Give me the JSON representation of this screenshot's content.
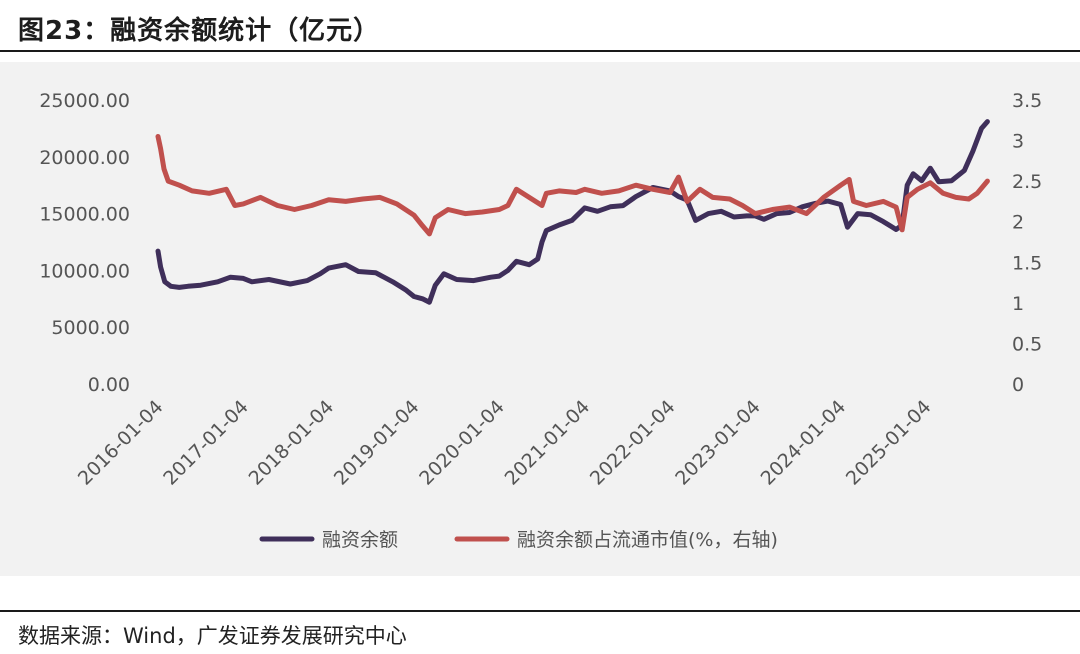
{
  "header": {
    "title": "图23：融资余额统计（亿元）"
  },
  "footer": {
    "source": "数据来源：Wind，广发证券发展研究中心"
  },
  "colors": {
    "series1": "#3f2f5a",
    "series2": "#c0504d",
    "panel": "#f2f2f2",
    "text": "#555555"
  },
  "chart_data": {
    "type": "line",
    "xlabel": "",
    "ylabel": "",
    "x_ticks": [
      "2016-01-04",
      "2017-01-04",
      "2018-01-04",
      "2019-01-04",
      "2020-01-04",
      "2021-01-04",
      "2022-01-04",
      "2023-01-04",
      "2024-01-04",
      "2025-01-04"
    ],
    "x_range": [
      2016.0,
      2025.75
    ],
    "y_left": {
      "ticks": [
        "0.00",
        "5000.00",
        "10000.00",
        "15000.00",
        "20000.00",
        "25000.00"
      ],
      "range": [
        0,
        25000
      ]
    },
    "y_right": {
      "ticks": [
        "0",
        "0.5",
        "1",
        "1.5",
        "2",
        "2.5",
        "3",
        "3.5"
      ],
      "range": [
        0,
        3.5
      ]
    },
    "grid": false,
    "legend_position": "bottom",
    "series": [
      {
        "name": "融资余额",
        "axis": "left",
        "color": "#3f2f5a",
        "points": [
          [
            2016.0,
            11700
          ],
          [
            2016.03,
            10300
          ],
          [
            2016.08,
            9000
          ],
          [
            2016.15,
            8600
          ],
          [
            2016.25,
            8500
          ],
          [
            2016.35,
            8600
          ],
          [
            2016.5,
            8700
          ],
          [
            2016.7,
            9000
          ],
          [
            2016.85,
            9400
          ],
          [
            2017.0,
            9300
          ],
          [
            2017.1,
            9000
          ],
          [
            2017.3,
            9200
          ],
          [
            2017.55,
            8800
          ],
          [
            2017.75,
            9100
          ],
          [
            2017.9,
            9700
          ],
          [
            2018.0,
            10200
          ],
          [
            2018.2,
            10500
          ],
          [
            2018.35,
            9900
          ],
          [
            2018.55,
            9800
          ],
          [
            2018.75,
            9000
          ],
          [
            2018.9,
            8300
          ],
          [
            2019.0,
            7700
          ],
          [
            2019.1,
            7500
          ],
          [
            2019.18,
            7200
          ],
          [
            2019.25,
            8700
          ],
          [
            2019.35,
            9700
          ],
          [
            2019.5,
            9200
          ],
          [
            2019.7,
            9100
          ],
          [
            2019.9,
            9400
          ],
          [
            2020.0,
            9500
          ],
          [
            2020.1,
            10000
          ],
          [
            2020.2,
            10800
          ],
          [
            2020.35,
            10500
          ],
          [
            2020.45,
            11000
          ],
          [
            2020.5,
            12500
          ],
          [
            2020.55,
            13500
          ],
          [
            2020.7,
            14000
          ],
          [
            2020.85,
            14400
          ],
          [
            2021.0,
            15500
          ],
          [
            2021.15,
            15200
          ],
          [
            2021.3,
            15600
          ],
          [
            2021.45,
            15700
          ],
          [
            2021.6,
            16500
          ],
          [
            2021.8,
            17300
          ],
          [
            2022.0,
            17000
          ],
          [
            2022.1,
            16500
          ],
          [
            2022.2,
            16200
          ],
          [
            2022.3,
            14400
          ],
          [
            2022.45,
            15000
          ],
          [
            2022.6,
            15200
          ],
          [
            2022.75,
            14700
          ],
          [
            2022.9,
            14800
          ],
          [
            2023.0,
            14800
          ],
          [
            2023.1,
            14500
          ],
          [
            2023.25,
            15000
          ],
          [
            2023.4,
            15100
          ],
          [
            2023.55,
            15600
          ],
          [
            2023.7,
            15900
          ],
          [
            2023.85,
            16100
          ],
          [
            2024.0,
            15800
          ],
          [
            2024.08,
            13800
          ],
          [
            2024.2,
            15000
          ],
          [
            2024.35,
            14900
          ],
          [
            2024.5,
            14300
          ],
          [
            2024.65,
            13600
          ],
          [
            2024.72,
            14000
          ],
          [
            2024.78,
            17500
          ],
          [
            2024.85,
            18500
          ],
          [
            2024.95,
            17900
          ],
          [
            2025.05,
            19000
          ],
          [
            2025.15,
            17800
          ],
          [
            2025.3,
            17900
          ],
          [
            2025.45,
            18800
          ],
          [
            2025.55,
            20500
          ],
          [
            2025.65,
            22500
          ],
          [
            2025.72,
            23100
          ]
        ]
      },
      {
        "name": "融资余额占流通市值(%，右轴)",
        "axis": "right",
        "color": "#c0504d",
        "points": [
          [
            2016.0,
            3.05
          ],
          [
            2016.03,
            2.9
          ],
          [
            2016.07,
            2.65
          ],
          [
            2016.12,
            2.5
          ],
          [
            2016.25,
            2.45
          ],
          [
            2016.4,
            2.38
          ],
          [
            2016.6,
            2.35
          ],
          [
            2016.8,
            2.4
          ],
          [
            2016.9,
            2.2
          ],
          [
            2017.0,
            2.22
          ],
          [
            2017.2,
            2.3
          ],
          [
            2017.4,
            2.2
          ],
          [
            2017.6,
            2.15
          ],
          [
            2017.8,
            2.2
          ],
          [
            2018.0,
            2.27
          ],
          [
            2018.2,
            2.25
          ],
          [
            2018.4,
            2.28
          ],
          [
            2018.6,
            2.3
          ],
          [
            2018.8,
            2.22
          ],
          [
            2019.0,
            2.08
          ],
          [
            2019.1,
            1.95
          ],
          [
            2019.18,
            1.85
          ],
          [
            2019.25,
            2.05
          ],
          [
            2019.4,
            2.15
          ],
          [
            2019.6,
            2.1
          ],
          [
            2019.8,
            2.12
          ],
          [
            2020.0,
            2.15
          ],
          [
            2020.1,
            2.2
          ],
          [
            2020.2,
            2.4
          ],
          [
            2020.35,
            2.3
          ],
          [
            2020.5,
            2.2
          ],
          [
            2020.55,
            2.35
          ],
          [
            2020.7,
            2.38
          ],
          [
            2020.9,
            2.36
          ],
          [
            2021.0,
            2.4
          ],
          [
            2021.2,
            2.35
          ],
          [
            2021.4,
            2.38
          ],
          [
            2021.6,
            2.45
          ],
          [
            2021.8,
            2.4
          ],
          [
            2022.0,
            2.36
          ],
          [
            2022.1,
            2.55
          ],
          [
            2022.2,
            2.25
          ],
          [
            2022.35,
            2.4
          ],
          [
            2022.5,
            2.3
          ],
          [
            2022.7,
            2.28
          ],
          [
            2022.85,
            2.2
          ],
          [
            2023.0,
            2.1
          ],
          [
            2023.2,
            2.15
          ],
          [
            2023.4,
            2.18
          ],
          [
            2023.6,
            2.1
          ],
          [
            2023.8,
            2.3
          ],
          [
            2024.0,
            2.45
          ],
          [
            2024.1,
            2.52
          ],
          [
            2024.15,
            2.25
          ],
          [
            2024.3,
            2.2
          ],
          [
            2024.5,
            2.25
          ],
          [
            2024.65,
            2.18
          ],
          [
            2024.72,
            1.9
          ],
          [
            2024.78,
            2.3
          ],
          [
            2024.9,
            2.4
          ],
          [
            2025.05,
            2.48
          ],
          [
            2025.2,
            2.35
          ],
          [
            2025.35,
            2.3
          ],
          [
            2025.5,
            2.28
          ],
          [
            2025.6,
            2.35
          ],
          [
            2025.72,
            2.5
          ]
        ]
      }
    ]
  }
}
